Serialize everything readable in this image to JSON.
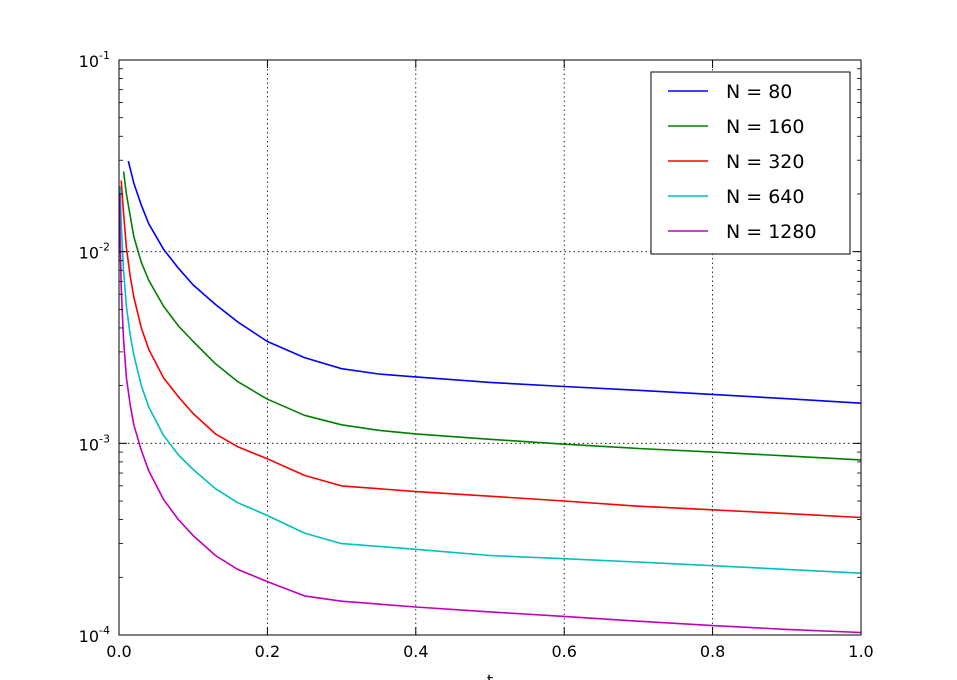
{
  "chart_data": {
    "type": "line",
    "title": "",
    "xlabel": "t",
    "ylabel": "",
    "xlim": [
      0.0,
      1.0
    ],
    "ylim": [
      0.0001,
      0.1
    ],
    "yscale": "log",
    "grid": true,
    "legend": "top-right",
    "x_ticks": [
      "0.0",
      "0.2",
      "0.4",
      "0.6",
      "0.8",
      "1.0"
    ],
    "x_tick_values": [
      0.0,
      0.2,
      0.4,
      0.6,
      0.8,
      1.0
    ],
    "y_ticks": [
      {
        "base": "10",
        "exp": "-4",
        "value": 0.0001
      },
      {
        "base": "10",
        "exp": "-3",
        "value": 0.001
      },
      {
        "base": "10",
        "exp": "-2",
        "value": 0.01
      },
      {
        "base": "10",
        "exp": "-1",
        "value": 0.1
      }
    ],
    "series": [
      {
        "name": "N = 80",
        "color": "#0000ff",
        "x": [
          0.0125,
          0.02,
          0.03,
          0.04,
          0.06,
          0.08,
          0.1,
          0.13,
          0.16,
          0.2,
          0.25,
          0.3,
          0.35,
          0.4,
          0.5,
          0.6,
          0.7,
          0.8,
          0.9,
          1.0
        ],
        "y": [
          0.0297,
          0.0228,
          0.0175,
          0.014,
          0.0103,
          0.0082,
          0.0067,
          0.0053,
          0.0043,
          0.0034,
          0.0028,
          0.00245,
          0.0023,
          0.00222,
          0.00208,
          0.00198,
          0.00189,
          0.0018,
          0.00171,
          0.00162
        ]
      },
      {
        "name": "N = 160",
        "color": "#008000",
        "x": [
          0.00625,
          0.01,
          0.02,
          0.03,
          0.04,
          0.06,
          0.08,
          0.1,
          0.13,
          0.16,
          0.2,
          0.25,
          0.3,
          0.35,
          0.4,
          0.5,
          0.6,
          0.7,
          0.8,
          0.9,
          1.0
        ],
        "y": [
          0.0262,
          0.02,
          0.012,
          0.0088,
          0.0071,
          0.0052,
          0.0041,
          0.0034,
          0.0026,
          0.0021,
          0.0017,
          0.0014,
          0.00125,
          0.00117,
          0.00112,
          0.00105,
          0.00099,
          0.00094,
          0.0009,
          0.00086,
          0.00082
        ]
      },
      {
        "name": "N = 320",
        "color": "#ff0000",
        "x": [
          0.003,
          0.006,
          0.01,
          0.015,
          0.02,
          0.03,
          0.04,
          0.06,
          0.08,
          0.1,
          0.13,
          0.16,
          0.2,
          0.25,
          0.3,
          0.35,
          0.4,
          0.5,
          0.6,
          0.7,
          0.8,
          0.9,
          1.0
        ],
        "y": [
          0.0235,
          0.016,
          0.0105,
          0.0075,
          0.0058,
          0.004,
          0.0031,
          0.0022,
          0.00175,
          0.00143,
          0.00112,
          0.00096,
          0.00083,
          0.00068,
          0.0006,
          0.00058,
          0.00056,
          0.00053,
          0.0005,
          0.00047,
          0.00045,
          0.00043,
          0.00041
        ]
      },
      {
        "name": "N = 640",
        "color": "#00bfbf",
        "x": [
          0.0015,
          0.003,
          0.006,
          0.01,
          0.015,
          0.02,
          0.03,
          0.04,
          0.06,
          0.08,
          0.1,
          0.13,
          0.16,
          0.2,
          0.25,
          0.3,
          0.35,
          0.4,
          0.5,
          0.6,
          0.7,
          0.8,
          0.9,
          1.0
        ],
        "y": [
          0.022,
          0.014,
          0.008,
          0.0052,
          0.0037,
          0.0029,
          0.002,
          0.00155,
          0.0011,
          0.00087,
          0.00073,
          0.00058,
          0.00049,
          0.00042,
          0.00034,
          0.0003,
          0.00029,
          0.00028,
          0.00026,
          0.00025,
          0.00024,
          0.00023,
          0.00022,
          0.00021
        ]
      },
      {
        "name": "N = 1280",
        "color": "#bf00bf",
        "x": [
          0.0008,
          0.0015,
          0.003,
          0.006,
          0.01,
          0.015,
          0.02,
          0.03,
          0.04,
          0.06,
          0.08,
          0.1,
          0.13,
          0.16,
          0.2,
          0.25,
          0.3,
          0.35,
          0.4,
          0.5,
          0.6,
          0.7,
          0.8,
          0.9,
          1.0
        ],
        "y": [
          0.02,
          0.012,
          0.0065,
          0.0035,
          0.0022,
          0.0016,
          0.00125,
          0.00092,
          0.00072,
          0.00051,
          0.0004,
          0.00033,
          0.00026,
          0.00022,
          0.00019,
          0.00016,
          0.00015,
          0.000145,
          0.00014,
          0.000132,
          0.000125,
          0.000118,
          0.000112,
          0.000107,
          0.000103
        ]
      }
    ]
  }
}
